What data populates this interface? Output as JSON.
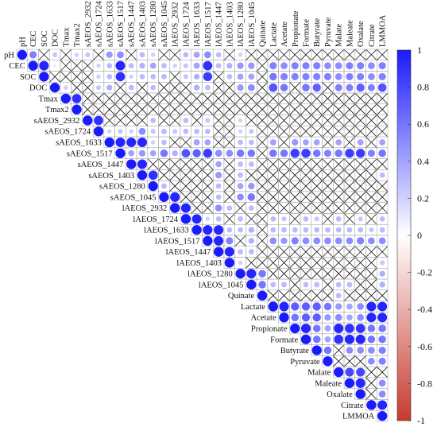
{
  "chart_data": {
    "type": "heatmap",
    "variables": [
      "pH",
      "CEC",
      "SOC",
      "DOC",
      "Tmax",
      "Tmax2",
      "sAEOS_2932",
      "sAEOS_1724",
      "sAEOS_1633",
      "sAEOS_1517",
      "sAEOS_1447",
      "sAEOS_1403",
      "sAEOS_1280",
      "sAEOS_1045",
      "lAEOS_2932",
      "lAEOS_1724",
      "lAEOS_1633",
      "lAEOS_1517",
      "lAEOS_1447",
      "lAEOS_1403",
      "lAEOS_1280",
      "lAEOS_1045",
      "Quinate",
      "Lactate",
      "Acetate",
      "Propionate",
      "Formate",
      "Butyrate",
      "Pyruvate",
      "Malate",
      "Maleate",
      "Oxalate",
      "Citrate",
      "LMMOA"
    ],
    "colorbar": {
      "ticks": [
        "1",
        "0.8",
        "0.6",
        "0.4",
        "0.2",
        "0",
        "-0.2",
        "-0.4",
        "-0.6",
        "-0.8",
        "-1"
      ],
      "range": [
        -1,
        1
      ],
      "colors": {
        "negative": "#c83a2e",
        "zero": "#ffffff",
        "positive": "#1a1aff"
      }
    },
    "significant_cells": [
      [
        "pH",
        "CEC",
        0.55
      ],
      [
        "pH",
        "DOC",
        0.25
      ],
      [
        "pH",
        "Tmax2",
        0.2
      ],
      [
        "pH",
        "sAEOS_2932",
        0.25
      ],
      [
        "pH",
        "sAEOS_1633",
        0.45
      ],
      [
        "pH",
        "sAEOS_1517",
        0.5
      ],
      [
        "pH",
        "sAEOS_1403",
        0.3
      ],
      [
        "pH",
        "sAEOS_1280",
        0.2
      ],
      [
        "pH",
        "lAEOS_1724",
        0.3
      ],
      [
        "pH",
        "lAEOS_1633",
        0.4
      ],
      [
        "pH",
        "lAEOS_1517",
        0.5
      ],
      [
        "pH",
        "lAEOS_1447",
        0.3
      ],
      [
        "pH",
        "lAEOS_1280",
        0.2
      ],
      [
        "CEC",
        "SOC",
        0.95
      ],
      [
        "CEC",
        "DOC",
        0.1
      ],
      [
        "CEC",
        "sAEOS_1724",
        0.2
      ],
      [
        "CEC",
        "sAEOS_1633",
        0.3
      ],
      [
        "CEC",
        "sAEOS_1517",
        0.95
      ],
      [
        "CEC",
        "sAEOS_1447",
        0.3
      ],
      [
        "CEC",
        "sAEOS_1403",
        0.35
      ],
      [
        "CEC",
        "sAEOS_1280",
        0.4
      ],
      [
        "CEC",
        "sAEOS_1045",
        0.3
      ],
      [
        "CEC",
        "lAEOS_2932",
        0.2
      ],
      [
        "CEC",
        "lAEOS_1724",
        0.25
      ],
      [
        "CEC",
        "lAEOS_1633",
        0.4
      ],
      [
        "CEC",
        "lAEOS_1517",
        0.9
      ],
      [
        "CEC",
        "lAEOS_1447",
        0.3
      ],
      [
        "CEC",
        "lAEOS_1403",
        0.35
      ],
      [
        "CEC",
        "lAEOS_1280",
        0.45
      ],
      [
        "CEC",
        "lAEOS_1045",
        0.45
      ],
      [
        "CEC",
        "Lactate",
        0.55
      ],
      [
        "CEC",
        "Acetate",
        0.5
      ],
      [
        "CEC",
        "Propionate",
        0.55
      ],
      [
        "CEC",
        "Formate",
        0.55
      ],
      [
        "CEC",
        "Butyrate",
        0.55
      ],
      [
        "CEC",
        "Pyruvate",
        0.5
      ],
      [
        "CEC",
        "Malate",
        0.5
      ],
      [
        "CEC",
        "Maleate",
        0.55
      ],
      [
        "CEC",
        "Oxalate",
        0.55
      ],
      [
        "CEC",
        "Citrate",
        0.5
      ],
      [
        "CEC",
        "LMMOA",
        0.55
      ],
      [
        "SOC",
        "sAEOS_1724",
        0.2
      ],
      [
        "SOC",
        "sAEOS_1633",
        0.3
      ],
      [
        "SOC",
        "sAEOS_1517",
        0.9
      ],
      [
        "SOC",
        "sAEOS_1447",
        0.2
      ],
      [
        "SOC",
        "sAEOS_1403",
        0.3
      ],
      [
        "SOC",
        "sAEOS_1280",
        0.3
      ],
      [
        "SOC",
        "sAEOS_1045",
        0.3
      ],
      [
        "SOC",
        "lAEOS_1724",
        0.25
      ],
      [
        "SOC",
        "lAEOS_1633",
        0.35
      ],
      [
        "SOC",
        "lAEOS_1517",
        0.85
      ],
      [
        "SOC",
        "lAEOS_1403",
        0.3
      ],
      [
        "SOC",
        "lAEOS_1280",
        0.4
      ],
      [
        "SOC",
        "lAEOS_1045",
        0.4
      ],
      [
        "SOC",
        "Lactate",
        0.6
      ],
      [
        "SOC",
        "Acetate",
        0.55
      ],
      [
        "SOC",
        "Propionate",
        0.55
      ],
      [
        "SOC",
        "Formate",
        0.55
      ],
      [
        "SOC",
        "Butyrate",
        0.55
      ],
      [
        "SOC",
        "Pyruvate",
        0.55
      ],
      [
        "SOC",
        "Malate",
        0.5
      ],
      [
        "SOC",
        "Maleate",
        0.55
      ],
      [
        "SOC",
        "Oxalate",
        0.55
      ],
      [
        "SOC",
        "Citrate",
        0.5
      ],
      [
        "SOC",
        "LMMOA",
        0.55
      ],
      [
        "DOC",
        "Tmax",
        0.2
      ],
      [
        "DOC",
        "sAEOS_1724",
        0.25
      ],
      [
        "DOC",
        "sAEOS_1633",
        0.35
      ],
      [
        "DOC",
        "sAEOS_1447",
        0.3
      ],
      [
        "DOC",
        "sAEOS_1280",
        0.3
      ],
      [
        "DOC",
        "lAEOS_1633",
        0.35
      ],
      [
        "DOC",
        "lAEOS_1517",
        0.3
      ],
      [
        "DOC",
        "lAEOS_1280",
        0.45
      ],
      [
        "DOC",
        "lAEOS_1045",
        0.5
      ],
      [
        "DOC",
        "Lactate",
        0.75
      ],
      [
        "DOC",
        "Acetate",
        0.6
      ],
      [
        "DOC",
        "Formate",
        0.6
      ],
      [
        "DOC",
        "Butyrate",
        0.7
      ],
      [
        "DOC",
        "Malate",
        0.55
      ],
      [
        "DOC",
        "Maleate",
        0.55
      ],
      [
        "DOC",
        "Oxalate",
        0.7
      ],
      [
        "DOC",
        "Citrate",
        0.55
      ],
      [
        "DOC",
        "LMMOA",
        0.75
      ],
      [
        "Tmax",
        "Tmax2",
        0.9
      ],
      [
        "sAEOS_2932",
        "sAEOS_1724",
        0.9
      ],
      [
        "sAEOS_2932",
        "sAEOS_1280",
        0.3
      ],
      [
        "sAEOS_2932",
        "lAEOS_1724",
        0.3
      ],
      [
        "sAEOS_2932",
        "lAEOS_1517",
        0.25
      ],
      [
        "sAEOS_2932",
        "lAEOS_1280",
        0.2
      ],
      [
        "sAEOS_1724",
        "sAEOS_1633",
        0.2
      ],
      [
        "sAEOS_1724",
        "sAEOS_1517",
        0.25
      ],
      [
        "sAEOS_1724",
        "sAEOS_1447",
        0.2
      ],
      [
        "sAEOS_1724",
        "sAEOS_1403",
        0.5
      ],
      [
        "sAEOS_1724",
        "sAEOS_1280",
        0.25
      ],
      [
        "sAEOS_1724",
        "sAEOS_1045",
        0.3
      ],
      [
        "sAEOS_1724",
        "lAEOS_2932",
        0.25
      ],
      [
        "sAEOS_1724",
        "lAEOS_1724",
        0.3
      ],
      [
        "sAEOS_1724",
        "lAEOS_1633",
        0.3
      ],
      [
        "sAEOS_1724",
        "lAEOS_1517",
        0.3
      ],
      [
        "sAEOS_1724",
        "lAEOS_1280",
        0.2
      ],
      [
        "sAEOS_1724",
        "lAEOS_1045",
        0.25
      ],
      [
        "sAEOS_1633",
        "sAEOS_1517",
        0.95
      ],
      [
        "sAEOS_1633",
        "sAEOS_1447",
        0.95
      ],
      [
        "sAEOS_1633",
        "sAEOS_1403",
        0.95
      ],
      [
        "sAEOS_1633",
        "sAEOS_1280",
        0.2
      ],
      [
        "sAEOS_1633",
        "sAEOS_1045",
        0.3
      ],
      [
        "sAEOS_1633",
        "lAEOS_1633",
        0.4
      ],
      [
        "sAEOS_1633",
        "lAEOS_1517",
        0.4
      ],
      [
        "sAEOS_1633",
        "lAEOS_1280",
        0.3
      ],
      [
        "sAEOS_1633",
        "lAEOS_1045",
        0.3
      ],
      [
        "sAEOS_1633",
        "Lactate",
        0.4
      ],
      [
        "sAEOS_1633",
        "Propionate",
        0.45
      ],
      [
        "sAEOS_1633",
        "Formate",
        0.4
      ],
      [
        "sAEOS_1633",
        "Butyrate",
        0.4
      ],
      [
        "sAEOS_1633",
        "Malate",
        0.4
      ],
      [
        "sAEOS_1633",
        "Oxalate",
        0.4
      ],
      [
        "sAEOS_1633",
        "LMMOA",
        0.4
      ],
      [
        "sAEOS_1517",
        "sAEOS_1447",
        0.4
      ],
      [
        "sAEOS_1517",
        "sAEOS_1403",
        0.45
      ],
      [
        "sAEOS_1517",
        "sAEOS_1280",
        0.4
      ],
      [
        "sAEOS_1517",
        "sAEOS_1045",
        0.6
      ],
      [
        "sAEOS_1517",
        "lAEOS_2932",
        0.35
      ],
      [
        "sAEOS_1517",
        "lAEOS_1724",
        0.75
      ],
      [
        "sAEOS_1517",
        "lAEOS_1633",
        0.7
      ],
      [
        "sAEOS_1517",
        "lAEOS_1517",
        0.85
      ],
      [
        "sAEOS_1517",
        "lAEOS_1447",
        0.5
      ],
      [
        "sAEOS_1517",
        "lAEOS_1403",
        0.5
      ],
      [
        "sAEOS_1517",
        "lAEOS_1280",
        0.6
      ],
      [
        "sAEOS_1517",
        "lAEOS_1045",
        0.6
      ],
      [
        "sAEOS_1517",
        "Lactate",
        0.6
      ],
      [
        "sAEOS_1517",
        "Acetate",
        0.6
      ],
      [
        "sAEOS_1517",
        "Propionate",
        0.85
      ],
      [
        "sAEOS_1517",
        "Formate",
        0.85
      ],
      [
        "sAEOS_1517",
        "Butyrate",
        0.6
      ],
      [
        "sAEOS_1517",
        "Pyruvate",
        0.55
      ],
      [
        "sAEOS_1517",
        "Malate",
        0.6
      ],
      [
        "sAEOS_1517",
        "Maleate",
        0.85
      ],
      [
        "sAEOS_1517",
        "Oxalate",
        0.85
      ],
      [
        "sAEOS_1517",
        "Citrate",
        0.55
      ],
      [
        "sAEOS_1517",
        "LMMOA",
        0.6
      ],
      [
        "sAEOS_1447",
        "sAEOS_1403",
        0.95
      ],
      [
        "sAEOS_1447",
        "lAEOS_1447",
        0.4
      ],
      [
        "sAEOS_1447",
        "lAEOS_1280",
        0.3
      ],
      [
        "sAEOS_1447",
        "lAEOS_1045",
        0.3
      ],
      [
        "sAEOS_1403",
        "sAEOS_1280",
        0.9
      ],
      [
        "sAEOS_1403",
        "lAEOS_1447",
        0.45
      ],
      [
        "sAEOS_1403",
        "lAEOS_1280",
        0.3
      ],
      [
        "sAEOS_1403",
        "LMMOA",
        0.3
      ],
      [
        "sAEOS_1280",
        "sAEOS_1045",
        0.3
      ],
      [
        "sAEOS_1280",
        "lAEOS_1447",
        0.3
      ],
      [
        "sAEOS_1280",
        "lAEOS_1280",
        0.4
      ],
      [
        "sAEOS_1280",
        "lAEOS_1045",
        0.45
      ],
      [
        "sAEOS_1045",
        "lAEOS_2932",
        0.95
      ],
      [
        "sAEOS_1045",
        "lAEOS_1447",
        0.3
      ],
      [
        "sAEOS_1045",
        "lAEOS_1280",
        0.5
      ],
      [
        "sAEOS_1045",
        "lAEOS_1045",
        0.6
      ],
      [
        "lAEOS_2932",
        "lAEOS_1724",
        0.95
      ],
      [
        "lAEOS_2932",
        "lAEOS_1447",
        0.5
      ],
      [
        "lAEOS_2932",
        "lAEOS_1403",
        0.3
      ],
      [
        "lAEOS_2932",
        "lAEOS_1045",
        0.3
      ],
      [
        "lAEOS_1724",
        "lAEOS_1633",
        0.95
      ],
      [
        "lAEOS_1724",
        "lAEOS_1517",
        0.2
      ],
      [
        "lAEOS_1724",
        "lAEOS_1447",
        0.3
      ],
      [
        "lAEOS_1724",
        "lAEOS_1280",
        0.3
      ],
      [
        "lAEOS_1724",
        "Lactate",
        0.3
      ],
      [
        "lAEOS_1724",
        "Acetate",
        0.25
      ],
      [
        "lAEOS_1724",
        "Formate",
        0.3
      ],
      [
        "lAEOS_1724",
        "Butyrate",
        0.25
      ],
      [
        "lAEOS_1724",
        "Malate",
        0.3
      ],
      [
        "lAEOS_1724",
        "Oxalate",
        0.25
      ],
      [
        "lAEOS_1724",
        "LMMOA",
        0.3
      ],
      [
        "lAEOS_1633",
        "lAEOS_1517",
        0.95
      ],
      [
        "lAEOS_1633",
        "lAEOS_1447",
        0.95
      ],
      [
        "lAEOS_1633",
        "lAEOS_1403",
        0.3
      ],
      [
        "lAEOS_1633",
        "lAEOS_1280",
        0.3
      ],
      [
        "lAEOS_1633",
        "lAEOS_1045",
        0.35
      ],
      [
        "lAEOS_1633",
        "Lactate",
        0.3
      ],
      [
        "lAEOS_1633",
        "Acetate",
        0.3
      ],
      [
        "lAEOS_1633",
        "Propionate",
        0.3
      ],
      [
        "lAEOS_1633",
        "Formate",
        0.3
      ],
      [
        "lAEOS_1633",
        "Butyrate",
        0.3
      ],
      [
        "lAEOS_1633",
        "Pyruvate",
        0.3
      ],
      [
        "lAEOS_1633",
        "Malate",
        0.3
      ],
      [
        "lAEOS_1633",
        "Maleate",
        0.3
      ],
      [
        "lAEOS_1633",
        "Oxalate",
        0.3
      ],
      [
        "lAEOS_1633",
        "Citrate",
        0.25
      ],
      [
        "lAEOS_1633",
        "LMMOA",
        0.3
      ],
      [
        "lAEOS_1517",
        "lAEOS_1447",
        0.95
      ],
      [
        "lAEOS_1517",
        "lAEOS_1403",
        0.55
      ],
      [
        "lAEOS_1517",
        "lAEOS_1045",
        0.35
      ],
      [
        "lAEOS_1517",
        "Lactate",
        0.5
      ],
      [
        "lAEOS_1517",
        "Acetate",
        0.45
      ],
      [
        "lAEOS_1517",
        "Propionate",
        0.55
      ],
      [
        "lAEOS_1517",
        "Formate",
        0.5
      ],
      [
        "lAEOS_1517",
        "Butyrate",
        0.5
      ],
      [
        "lAEOS_1517",
        "Pyruvate",
        0.5
      ],
      [
        "lAEOS_1517",
        "Malate",
        0.5
      ],
      [
        "lAEOS_1517",
        "Maleate",
        0.5
      ],
      [
        "lAEOS_1517",
        "Oxalate",
        0.55
      ],
      [
        "lAEOS_1517",
        "Citrate",
        0.5
      ],
      [
        "lAEOS_1517",
        "LMMOA",
        0.5
      ],
      [
        "lAEOS_1447",
        "lAEOS_1403",
        0.95
      ],
      [
        "lAEOS_1447",
        "lAEOS_1280",
        0.3
      ],
      [
        "lAEOS_1447",
        "lAEOS_1045",
        0.3
      ],
      [
        "lAEOS_1403",
        "lAEOS_1280",
        0.2
      ],
      [
        "lAEOS_1403",
        "LMMOA",
        0.25
      ],
      [
        "lAEOS_1280",
        "lAEOS_1045",
        0.95
      ],
      [
        "lAEOS_1280",
        "Quinate",
        0.6
      ],
      [
        "lAEOS_1280",
        "LMMOA",
        0.35
      ],
      [
        "lAEOS_1045",
        "Quinate",
        0.6
      ],
      [
        "lAEOS_1045",
        "Lactate",
        0.3
      ],
      [
        "lAEOS_1045",
        "Acetate",
        0.3
      ],
      [
        "lAEOS_1045",
        "Formate",
        0.3
      ],
      [
        "lAEOS_1045",
        "Butyrate",
        0.3
      ],
      [
        "lAEOS_1045",
        "Malate",
        0.3
      ],
      [
        "lAEOS_1045",
        "Maleate",
        0.3
      ],
      [
        "lAEOS_1045",
        "LMMOA",
        0.35
      ],
      [
        "Quinate",
        "Malate",
        0.3
      ],
      [
        "Lactate",
        "Acetate",
        0.95
      ],
      [
        "Lactate",
        "Propionate",
        0.7
      ],
      [
        "Lactate",
        "Formate",
        0.7
      ],
      [
        "Lactate",
        "Butyrate",
        0.7
      ],
      [
        "Lactate",
        "Pyruvate",
        0.6
      ],
      [
        "Lactate",
        "Malate",
        0.45
      ],
      [
        "Lactate",
        "Maleate",
        0.4
      ],
      [
        "Lactate",
        "Oxalate",
        0.5
      ],
      [
        "Lactate",
        "Citrate",
        0.95
      ],
      [
        "Lactate",
        "LMMOA",
        0.95
      ],
      [
        "Acetate",
        "Propionate",
        0.6
      ],
      [
        "Acetate",
        "Formate",
        0.7
      ],
      [
        "Acetate",
        "Butyrate",
        0.7
      ],
      [
        "Acetate",
        "Pyruvate",
        0.45
      ],
      [
        "Acetate",
        "Malate",
        0.5
      ],
      [
        "Acetate",
        "Maleate",
        0.4
      ],
      [
        "Acetate",
        "Oxalate",
        0.5
      ],
      [
        "Acetate",
        "Citrate",
        0.95
      ],
      [
        "Acetate",
        "LMMOA",
        0.95
      ],
      [
        "Propionate",
        "Formate",
        0.95
      ],
      [
        "Propionate",
        "Butyrate",
        0.6
      ],
      [
        "Propionate",
        "Pyruvate",
        0.4
      ],
      [
        "Propionate",
        "Malate",
        0.95
      ],
      [
        "Propionate",
        "Maleate",
        0.9
      ],
      [
        "Propionate",
        "Oxalate",
        0.9
      ],
      [
        "Propionate",
        "Citrate",
        0.6
      ],
      [
        "Propionate",
        "LMMOA",
        0.6
      ],
      [
        "Formate",
        "Butyrate",
        0.6
      ],
      [
        "Formate",
        "Pyruvate",
        0.4
      ],
      [
        "Formate",
        "Malate",
        0.9
      ],
      [
        "Formate",
        "Maleate",
        0.95
      ],
      [
        "Formate",
        "Oxalate",
        0.95
      ],
      [
        "Formate",
        "Citrate",
        0.6
      ],
      [
        "Formate",
        "LMMOA",
        0.6
      ],
      [
        "Butyrate",
        "Pyruvate",
        0.6
      ],
      [
        "Butyrate",
        "Maleate",
        0.5
      ],
      [
        "Butyrate",
        "Oxalate",
        0.5
      ],
      [
        "Butyrate",
        "Citrate",
        0.5
      ],
      [
        "Butyrate",
        "LMMOA",
        0.55
      ],
      [
        "Pyruvate",
        "Citrate",
        0.5
      ],
      [
        "Pyruvate",
        "LMMOA",
        0.55
      ],
      [
        "Malate",
        "Maleate",
        0.8
      ],
      [
        "Malate",
        "Oxalate",
        0.8
      ],
      [
        "Maleate",
        "Oxalate",
        0.95
      ],
      [
        "Maleate",
        "LMMOA",
        0.5
      ],
      [
        "Oxalate",
        "LMMOA",
        0.5
      ],
      [
        "Citrate",
        "LMMOA",
        0.95
      ]
    ]
  }
}
